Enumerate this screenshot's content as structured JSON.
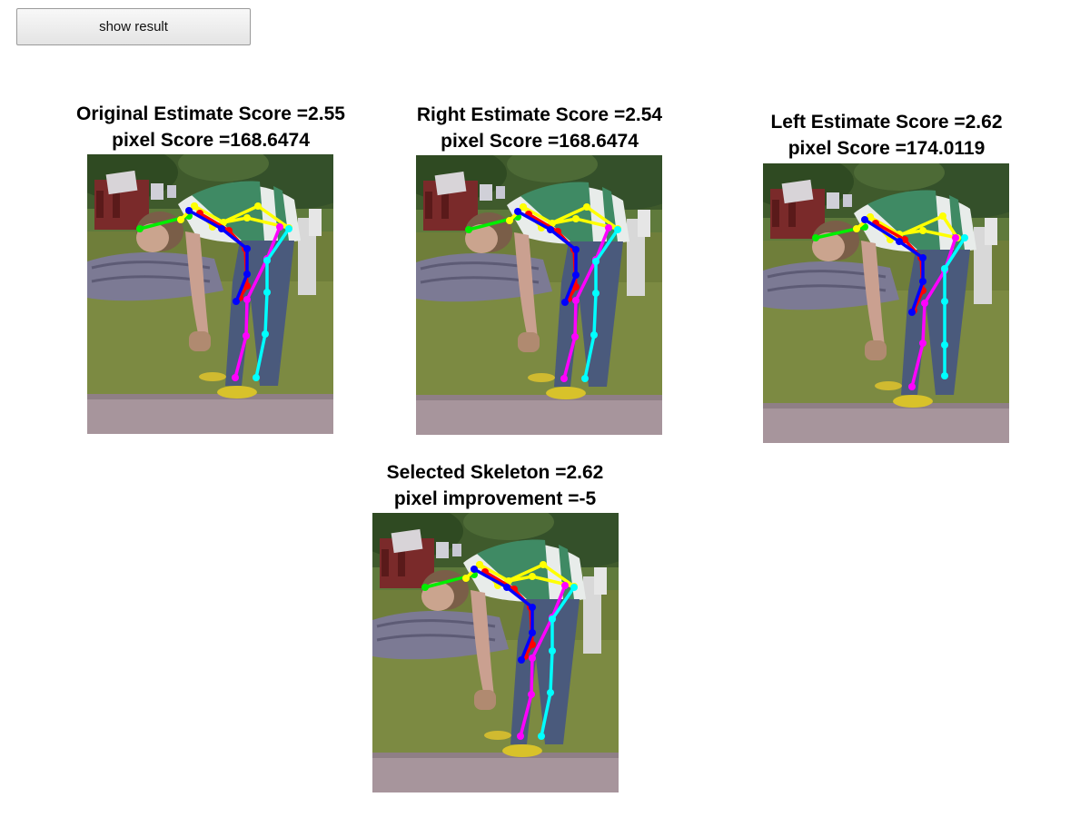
{
  "toolbar": {
    "show_result_label": "show result"
  },
  "panels": [
    {
      "line1": "Original Estimate Score =2.55",
      "line2": "pixel Score =168.6474"
    },
    {
      "line1": "Right Estimate Score =2.54",
      "line2": "pixel Score =168.6474"
    },
    {
      "line1": "Left Estimate Score =2.62",
      "line2": "pixel Score =174.0119"
    },
    {
      "line1": "Selected Skeleton =2.62",
      "line2": "pixel improvement =-5"
    }
  ],
  "skeleton_colors": {
    "head": "#00ee00",
    "torso": "#ffff00",
    "right_arm": "#ff0000",
    "left_arm": "#0000ff",
    "right_leg": "#ff00ff",
    "left_leg": "#00ffff"
  }
}
